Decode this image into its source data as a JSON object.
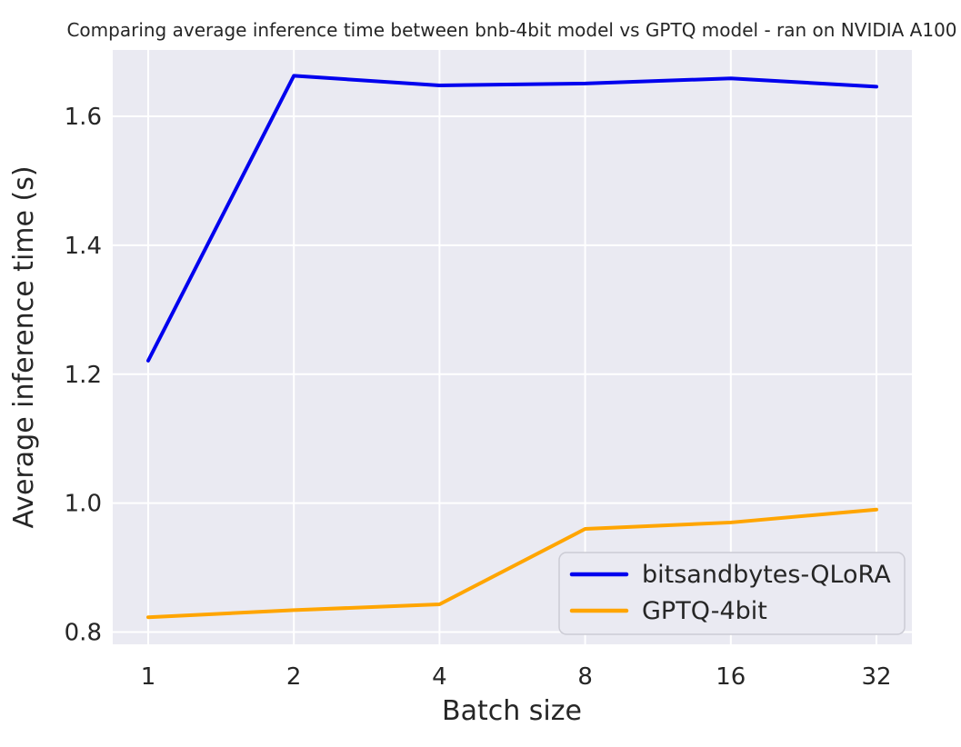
{
  "chart_data": {
    "type": "line",
    "title": "Comparing  average inference time between bnb-4bit model vs GPTQ model - ran on NVIDIA A100",
    "xlabel": "Batch size",
    "ylabel": "Average inference time (s)",
    "x_scale": "log2",
    "categories": [
      1,
      2,
      4,
      8,
      16,
      32
    ],
    "x_tick_labels": [
      "1",
      "2",
      "4",
      "8",
      "16",
      "32"
    ],
    "y_tick_labels": [
      "1.6",
      "1.4",
      "1.2",
      "1.0",
      "0.8"
    ],
    "y_ticks": [
      1.6,
      1.4,
      1.2,
      1.0,
      0.8
    ],
    "ylim": [
      0.781,
      1.703
    ],
    "grid": true,
    "legend_position": "lower right",
    "series": [
      {
        "name": "bitsandbytes-QLoRA",
        "color": "#0000ee",
        "values": [
          1.221,
          1.663,
          1.648,
          1.651,
          1.659,
          1.646
        ]
      },
      {
        "name": "GPTQ-4bit",
        "color": "#ffa500",
        "values": [
          0.823,
          0.834,
          0.843,
          0.96,
          0.97,
          0.99
        ]
      }
    ],
    "colors": {
      "plot_bg": "#eaeaf2",
      "grid": "#ffffff",
      "text": "#262626",
      "legend_border": "#cbcbd4"
    }
  }
}
